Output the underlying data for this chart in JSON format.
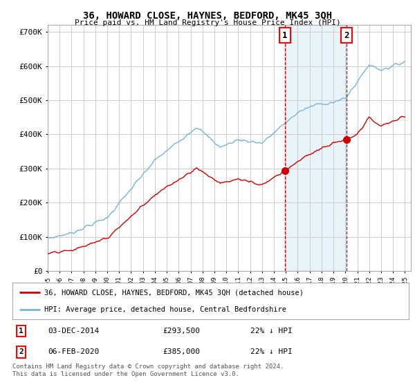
{
  "title": "36, HOWARD CLOSE, HAYNES, BEDFORD, MK45 3QH",
  "subtitle": "Price paid vs. HM Land Registry's House Price Index (HPI)",
  "ylim": [
    0,
    720000
  ],
  "yticks": [
    0,
    100000,
    200000,
    300000,
    400000,
    500000,
    600000,
    700000
  ],
  "ytick_labels": [
    "£0",
    "£100K",
    "£200K",
    "£300K",
    "£400K",
    "£500K",
    "£600K",
    "£700K"
  ],
  "hpi_color": "#7ab3d4",
  "price_color": "#cc0000",
  "shade_color": "#daeef8",
  "shade_alpha": 0.6,
  "vline_color": "#cc0000",
  "sale1_year": 2014.92,
  "sale1_price": 293500,
  "sale2_year": 2020.08,
  "sale2_price": 385000,
  "legend_red_label": "36, HOWARD CLOSE, HAYNES, BEDFORD, MK45 3QH (detached house)",
  "legend_blue_label": "HPI: Average price, detached house, Central Bedfordshire",
  "table_row1": [
    "1",
    "03-DEC-2014",
    "£293,500",
    "22% ↓ HPI"
  ],
  "table_row2": [
    "2",
    "06-FEB-2020",
    "£385,000",
    "22% ↓ HPI"
  ],
  "footnote": "Contains HM Land Registry data © Crown copyright and database right 2024.\nThis data is licensed under the Open Government Licence v3.0.",
  "background_color": "#ffffff",
  "grid_color": "#cccccc",
  "xmin": 1995,
  "xmax": 2025.5
}
